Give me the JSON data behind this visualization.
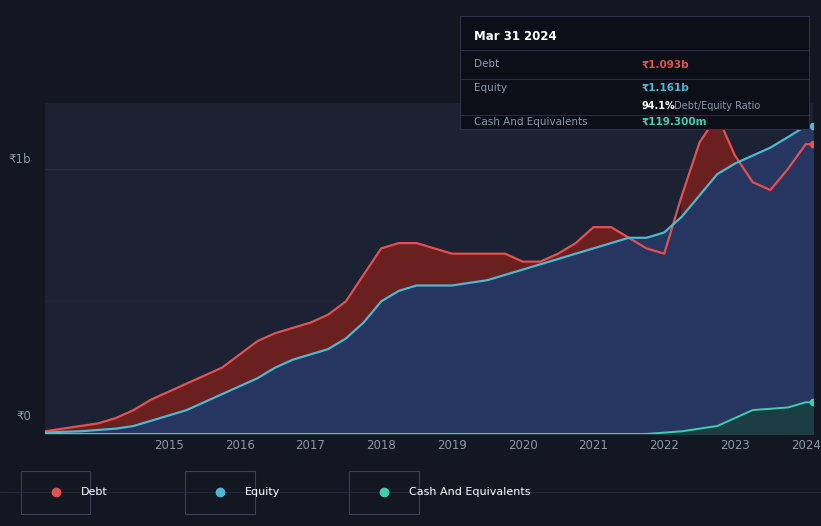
{
  "background_color": "#131722",
  "plot_bg_color": "#1c2133",
  "grid_color": "#2a3050",
  "debt_color": "#e05252",
  "equity_color": "#4db8d4",
  "cash_color": "#3dcfb0",
  "debt_fill_above": "#6b2020",
  "equity_fill": "#263660",
  "cash_fill": "#1a4040",
  "years": [
    2013.25,
    2013.5,
    2013.75,
    2014.0,
    2014.25,
    2014.5,
    2014.75,
    2015.0,
    2015.25,
    2015.5,
    2015.75,
    2016.0,
    2016.25,
    2016.5,
    2016.75,
    2017.0,
    2017.25,
    2017.5,
    2017.75,
    2018.0,
    2018.25,
    2018.5,
    2018.75,
    2019.0,
    2019.25,
    2019.5,
    2019.75,
    2020.0,
    2020.25,
    2020.5,
    2020.75,
    2021.0,
    2021.25,
    2021.5,
    2021.75,
    2022.0,
    2022.25,
    2022.5,
    2022.75,
    2023.0,
    2023.25,
    2023.5,
    2023.75,
    2024.0,
    2024.1
  ],
  "debt": [
    0.01,
    0.02,
    0.03,
    0.04,
    0.06,
    0.09,
    0.13,
    0.16,
    0.19,
    0.22,
    0.25,
    0.3,
    0.35,
    0.38,
    0.4,
    0.42,
    0.45,
    0.5,
    0.6,
    0.7,
    0.72,
    0.72,
    0.7,
    0.68,
    0.68,
    0.68,
    0.68,
    0.65,
    0.65,
    0.68,
    0.72,
    0.78,
    0.78,
    0.74,
    0.7,
    0.68,
    0.9,
    1.1,
    1.2,
    1.05,
    0.95,
    0.92,
    1.0,
    1.093,
    1.093
  ],
  "equity": [
    0.005,
    0.008,
    0.01,
    0.015,
    0.02,
    0.03,
    0.05,
    0.07,
    0.09,
    0.12,
    0.15,
    0.18,
    0.21,
    0.25,
    0.28,
    0.3,
    0.32,
    0.36,
    0.42,
    0.5,
    0.54,
    0.56,
    0.56,
    0.56,
    0.57,
    0.58,
    0.6,
    0.62,
    0.64,
    0.66,
    0.68,
    0.7,
    0.72,
    0.74,
    0.74,
    0.76,
    0.82,
    0.9,
    0.98,
    1.02,
    1.05,
    1.08,
    1.12,
    1.161,
    1.161
  ],
  "cash": [
    0.0,
    0.0,
    0.0,
    0.0,
    0.0,
    0.0,
    0.0,
    0.0,
    0.0,
    0.0,
    0.0,
    0.0,
    0.0,
    0.0,
    0.0,
    0.0,
    0.0,
    0.0,
    0.0,
    0.0,
    0.0,
    0.0,
    0.0,
    0.0,
    0.0,
    0.0,
    0.0,
    0.0,
    0.0,
    0.0,
    0.0,
    0.0,
    0.0,
    0.0,
    0.0,
    0.005,
    0.01,
    0.02,
    0.03,
    0.06,
    0.09,
    0.095,
    0.1,
    0.1193,
    0.1193
  ],
  "ylim": [
    0,
    1.25
  ],
  "ylim1b": 1.0,
  "xticks": [
    2015,
    2016,
    2017,
    2018,
    2019,
    2020,
    2021,
    2022,
    2023,
    2024
  ],
  "tick_color": "#8899aa",
  "tooltip_bg": "#0c0f18",
  "tooltip_border": "#2e3450",
  "tooltip_title": "Mar 31 2024",
  "tooltip_debt_label": "Debt",
  "tooltip_debt_value": "₹1.093b",
  "tooltip_equity_label": "Equity",
  "tooltip_equity_value": "₹1.161b",
  "tooltip_ratio_value": "94.1%",
  "tooltip_ratio_suffix": " Debt/Equity Ratio",
  "tooltip_cash_label": "Cash And Equivalents",
  "tooltip_cash_value": "₹119.300m",
  "legend_items": [
    {
      "label": "Debt",
      "color": "#e05252"
    },
    {
      "label": "Equity",
      "color": "#4db8d4"
    },
    {
      "label": "Cash And Equivalents",
      "color": "#3dcfb0"
    }
  ]
}
